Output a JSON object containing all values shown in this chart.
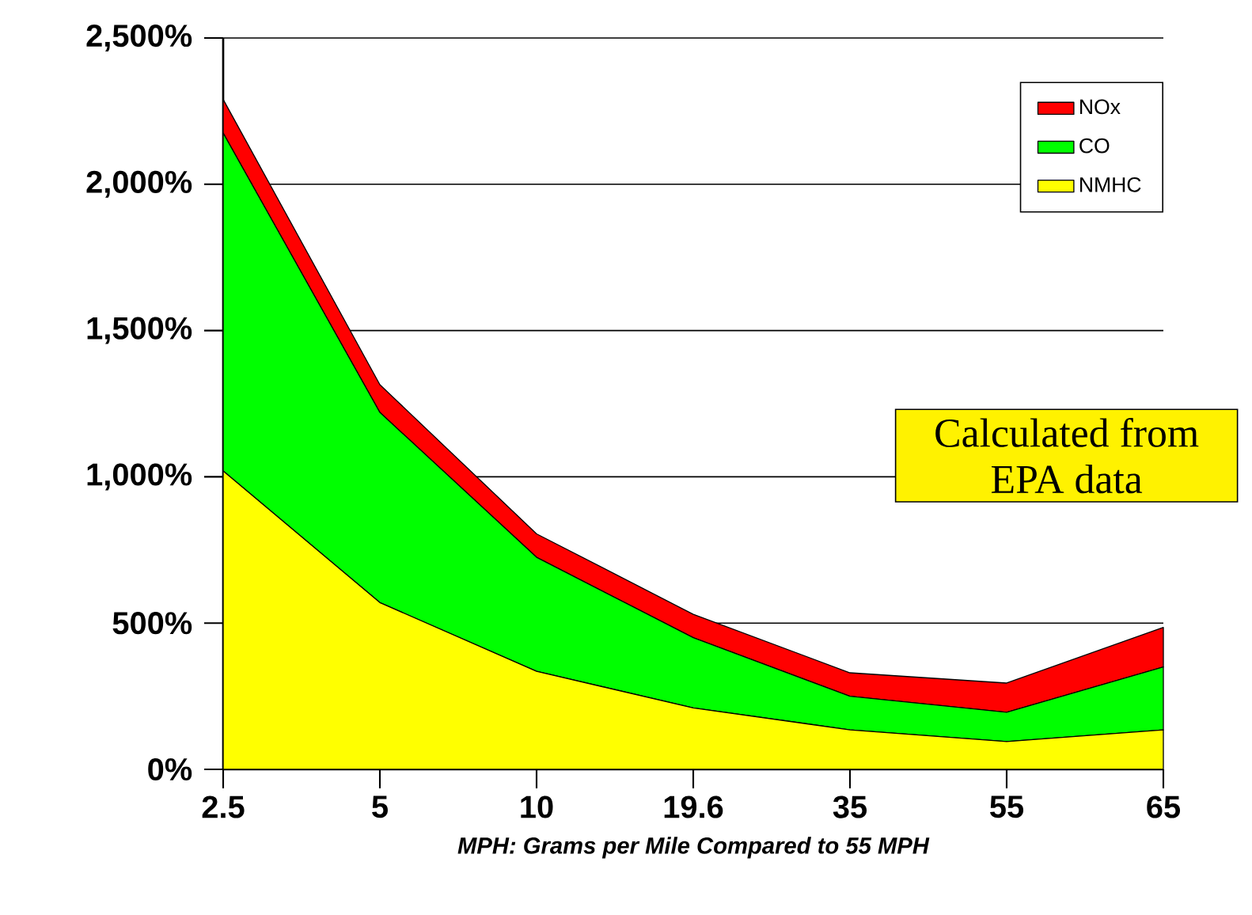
{
  "chart_data": {
    "type": "area",
    "stacked": true,
    "xlabel": "MPH: Grams per Mile Compared to 55 MPH",
    "categories": [
      "2.5",
      "5",
      "10",
      "19.6",
      "35",
      "55",
      "65"
    ],
    "series": [
      {
        "name": "NMHC",
        "color": "#ffff00",
        "values": [
          1020,
          570,
          335,
          210,
          135,
          95,
          135
        ]
      },
      {
        "name": "CO",
        "color": "#00ff00",
        "values": [
          1155,
          650,
          390,
          240,
          115,
          100,
          215
        ]
      },
      {
        "name": "NOx",
        "color": "#ff0000",
        "values": [
          115,
          95,
          80,
          80,
          80,
          100,
          135
        ]
      }
    ],
    "ylim": [
      0,
      2500
    ],
    "yticks": [
      {
        "value": 0,
        "label": "0%"
      },
      {
        "value": 500,
        "label": "500%"
      },
      {
        "value": 1000,
        "label": "1,000%"
      },
      {
        "value": 1500,
        "label": "1,500%"
      },
      {
        "value": 2000,
        "label": "2,000%"
      },
      {
        "value": 2500,
        "label": "2,500%"
      }
    ],
    "grid": "y",
    "legend": "top right",
    "annotations": [
      "Calculated from EPA data"
    ]
  }
}
